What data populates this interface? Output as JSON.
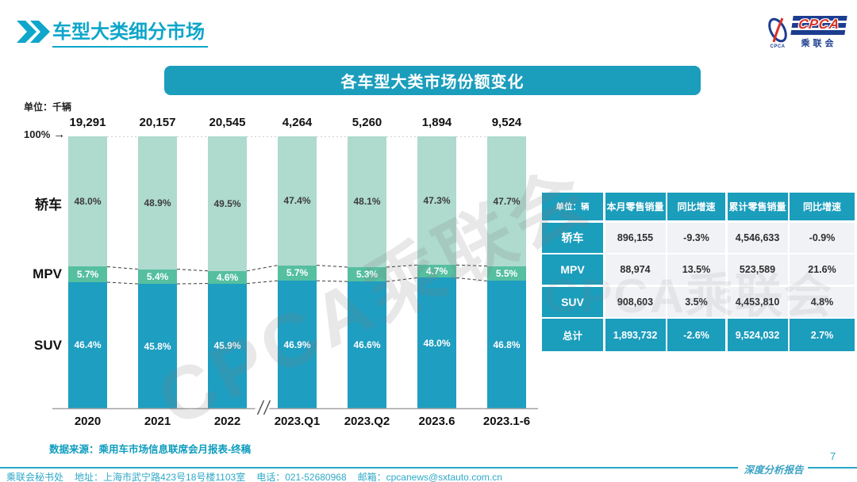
{
  "header": {
    "title": "车型大类细分市场",
    "logo": {
      "acronym": "CPCA",
      "sub": "乘联会",
      "tiny": "CPCA"
    }
  },
  "banner": {
    "title": "各车型大类市场份额变化"
  },
  "chart": {
    "unit_label": "单位：千辆",
    "hundred_label": "100%",
    "arrow": "→"
  },
  "chart_data": {
    "type": "bar",
    "stacked": true,
    "unit": "千辆",
    "title": "各车型大类市场份额变化",
    "categories": [
      "2020",
      "2021",
      "2022",
      "2023.Q1",
      "2023.Q2",
      "2023.6",
      "2023.1-6"
    ],
    "totals": [
      "19,291",
      "20,157",
      "20,545",
      "4,264",
      "5,260",
      "1,894",
      "9,524"
    ],
    "series": [
      {
        "name": "轿车",
        "values": [
          48.0,
          48.9,
          49.5,
          47.4,
          48.1,
          47.3,
          47.7
        ],
        "labels": [
          "48.0%",
          "48.9%",
          "49.5%",
          "47.4%",
          "48.1%",
          "47.3%",
          "47.7%"
        ],
        "color": "#AFDACE",
        "label_color": "#3c3c3c"
      },
      {
        "name": "MPV",
        "values": [
          5.7,
          5.4,
          4.6,
          5.7,
          5.3,
          4.7,
          5.5
        ],
        "labels": [
          "5.7%",
          "5.4%",
          "4.6%",
          "5.7%",
          "5.3%",
          "4.7%",
          "5.5%"
        ],
        "color": "#55BFA0",
        "label_color": "#ffffff"
      },
      {
        "name": "SUV",
        "values": [
          46.4,
          45.8,
          45.9,
          46.9,
          46.6,
          48.0,
          46.8
        ],
        "labels": [
          "46.4%",
          "45.8%",
          "45.9%",
          "46.9%",
          "46.6%",
          "48.0%",
          "46.8%"
        ],
        "color": "#1E9EC1",
        "label_color": "#ffffff"
      }
    ],
    "ylim": [
      0,
      100
    ],
    "axis_break_after_index": 2,
    "legend_position": "left-row-labels",
    "grid": false
  },
  "table": {
    "headers": [
      "单位：辆",
      "本月零售销量",
      "同比增速",
      "累计零售销量",
      "同比增速"
    ],
    "rows": [
      {
        "label": "轿车",
        "cells": [
          "896,155",
          "-9.3%",
          "4,546,633",
          "-0.9%"
        ],
        "total": false
      },
      {
        "label": "MPV",
        "cells": [
          "88,974",
          "13.5%",
          "523,589",
          "21.6%"
        ],
        "total": false
      },
      {
        "label": "SUV",
        "cells": [
          "908,603",
          "3.5%",
          "4,453,810",
          "4.8%"
        ],
        "total": false
      },
      {
        "label": "总计",
        "cells": [
          "1,893,732",
          "-2.6%",
          "9,524,032",
          "2.7%"
        ],
        "total": true
      }
    ]
  },
  "source_note": "数据来源：乘用车市场信息联席会月报表-终稿",
  "watermark": "CPCA乘联会",
  "footer": {
    "org": "乘联会秘书处",
    "address": "地址：上海市武宁路423号18号楼1103室",
    "phone": "电话：021-52680968",
    "email": "邮箱：cpcanews@sxtauto.com.cn",
    "page": "7",
    "report_label": "深度分析报告"
  },
  "colors": {
    "accent_teal": "#1B9DBC",
    "title_cyan": "#0EA6CA",
    "sedan": "#AFDACE",
    "mpv": "#55BFA0",
    "suv": "#1E9EC1",
    "footer_teal": "#2FA8C8",
    "logo_navy": "#1C3D8F",
    "logo_red": "#D93025"
  }
}
